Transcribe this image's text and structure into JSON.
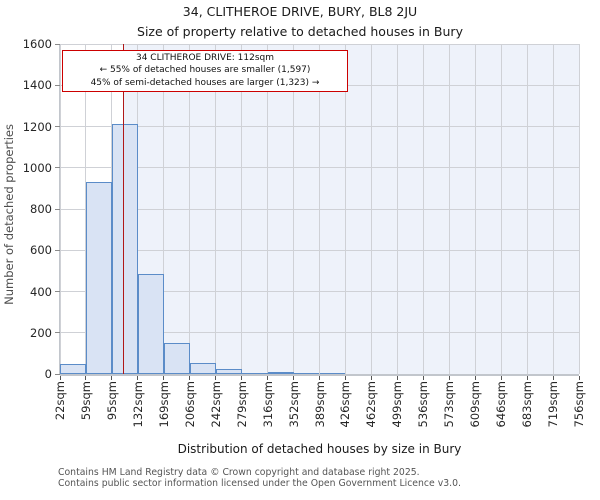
{
  "chart_data": {
    "type": "bar",
    "title": "34, CLITHEROE DRIVE, BURY, BL8 2JU",
    "subtitle": "Size of property relative to detached houses in Bury",
    "xlabel": "Distribution of detached houses by size in Bury",
    "ylabel": "Number of detached properties",
    "x_tick_labels": [
      "22sqm",
      "59sqm",
      "95sqm",
      "132sqm",
      "169sqm",
      "206sqm",
      "242sqm",
      "279sqm",
      "316sqm",
      "352sqm",
      "389sqm",
      "426sqm",
      "462sqm",
      "499sqm",
      "536sqm",
      "573sqm",
      "609sqm",
      "646sqm",
      "683sqm",
      "719sqm",
      "756sqm"
    ],
    "bin_edges_sqm": [
      22,
      59,
      95,
      132,
      169,
      206,
      242,
      279,
      316,
      352,
      389,
      426,
      462,
      499,
      536,
      573,
      609,
      646,
      683,
      719,
      756
    ],
    "values": [
      50,
      930,
      1210,
      485,
      150,
      55,
      25,
      3,
      10,
      3,
      5,
      0,
      0,
      0,
      0,
      0,
      0,
      0,
      0,
      0
    ],
    "y_ticks": [
      0,
      200,
      400,
      600,
      800,
      1000,
      1200,
      1400,
      1600
    ],
    "ylim": [
      0,
      1600
    ],
    "grid": true,
    "marker": {
      "sqm": 112,
      "color": "#b01818"
    },
    "colors": {
      "bar_fill": "#d9e3f4",
      "bar_edge": "#5b8cc8",
      "shade_right_of_marker": "#eef2fa",
      "gridline": "#cfd1d6",
      "annotation_border": "#cc0000"
    },
    "annotation": {
      "title": "34 CLITHEROE DRIVE: 112sqm",
      "line_smaller": "← 55% of detached houses are smaller (1,597)",
      "line_larger": "45% of semi-detached houses are larger (1,323) →"
    },
    "footer": [
      "Contains HM Land Registry data © Crown copyright and database right 2025.",
      "Contains public sector information licensed under the Open Government Licence v3.0."
    ]
  }
}
